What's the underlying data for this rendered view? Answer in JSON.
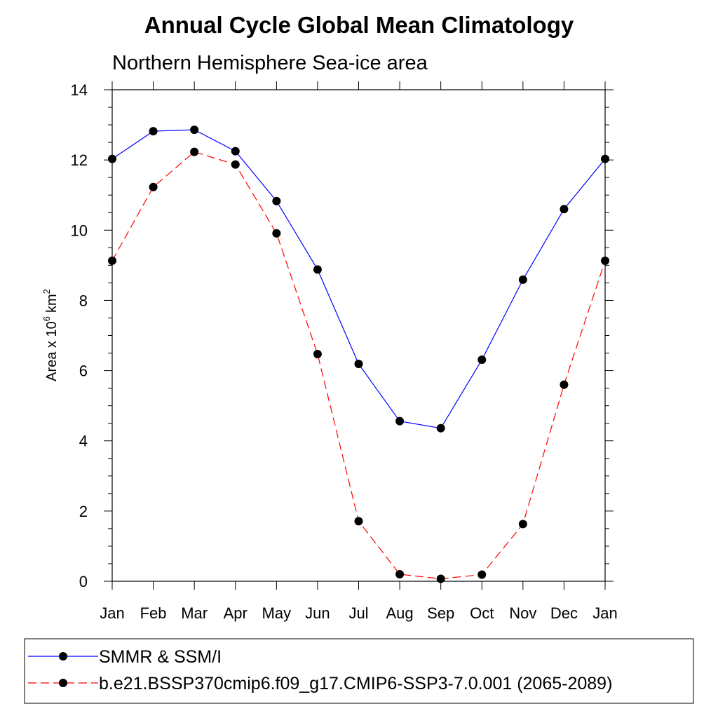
{
  "chart_data": {
    "type": "line",
    "title": "Annual Cycle Global Mean Climatology",
    "subtitle": "Northern Hemisphere Sea-ice area",
    "xlabel": "",
    "ylabel": "Area x 10",
    "ylabel_superscript": "6",
    "ylabel_unit": "km",
    "ylabel_unit_superscript": "2",
    "categories": [
      "Jan",
      "Feb",
      "Mar",
      "Apr",
      "May",
      "Jun",
      "Jul",
      "Aug",
      "Sep",
      "Oct",
      "Nov",
      "Dec",
      "Jan"
    ],
    "ylim": [
      0,
      14
    ],
    "yticks": [
      "0",
      "2",
      "4",
      "6",
      "8",
      "10",
      "12",
      "14"
    ],
    "grid": false,
    "legend_position": "bottom",
    "series": [
      {
        "name": "SMMR & SSM/I",
        "color": "#0000ff",
        "line_style": "solid",
        "marker": "filled-circle",
        "values": [
          12.03,
          12.82,
          12.86,
          12.25,
          10.83,
          8.88,
          6.19,
          4.56,
          4.36,
          6.31,
          8.59,
          10.6,
          12.03
        ]
      },
      {
        "name": "b.e21.BSSP370cmip6.f09_g17.CMIP6-SSP3-7.0.001 (2065-2089)",
        "color": "#ff0000",
        "line_style": "dashed",
        "marker": "filled-circle",
        "values": [
          9.13,
          11.23,
          12.23,
          11.87,
          9.91,
          6.47,
          1.71,
          0.2,
          0.07,
          0.19,
          1.63,
          5.6,
          9.13
        ]
      }
    ]
  }
}
